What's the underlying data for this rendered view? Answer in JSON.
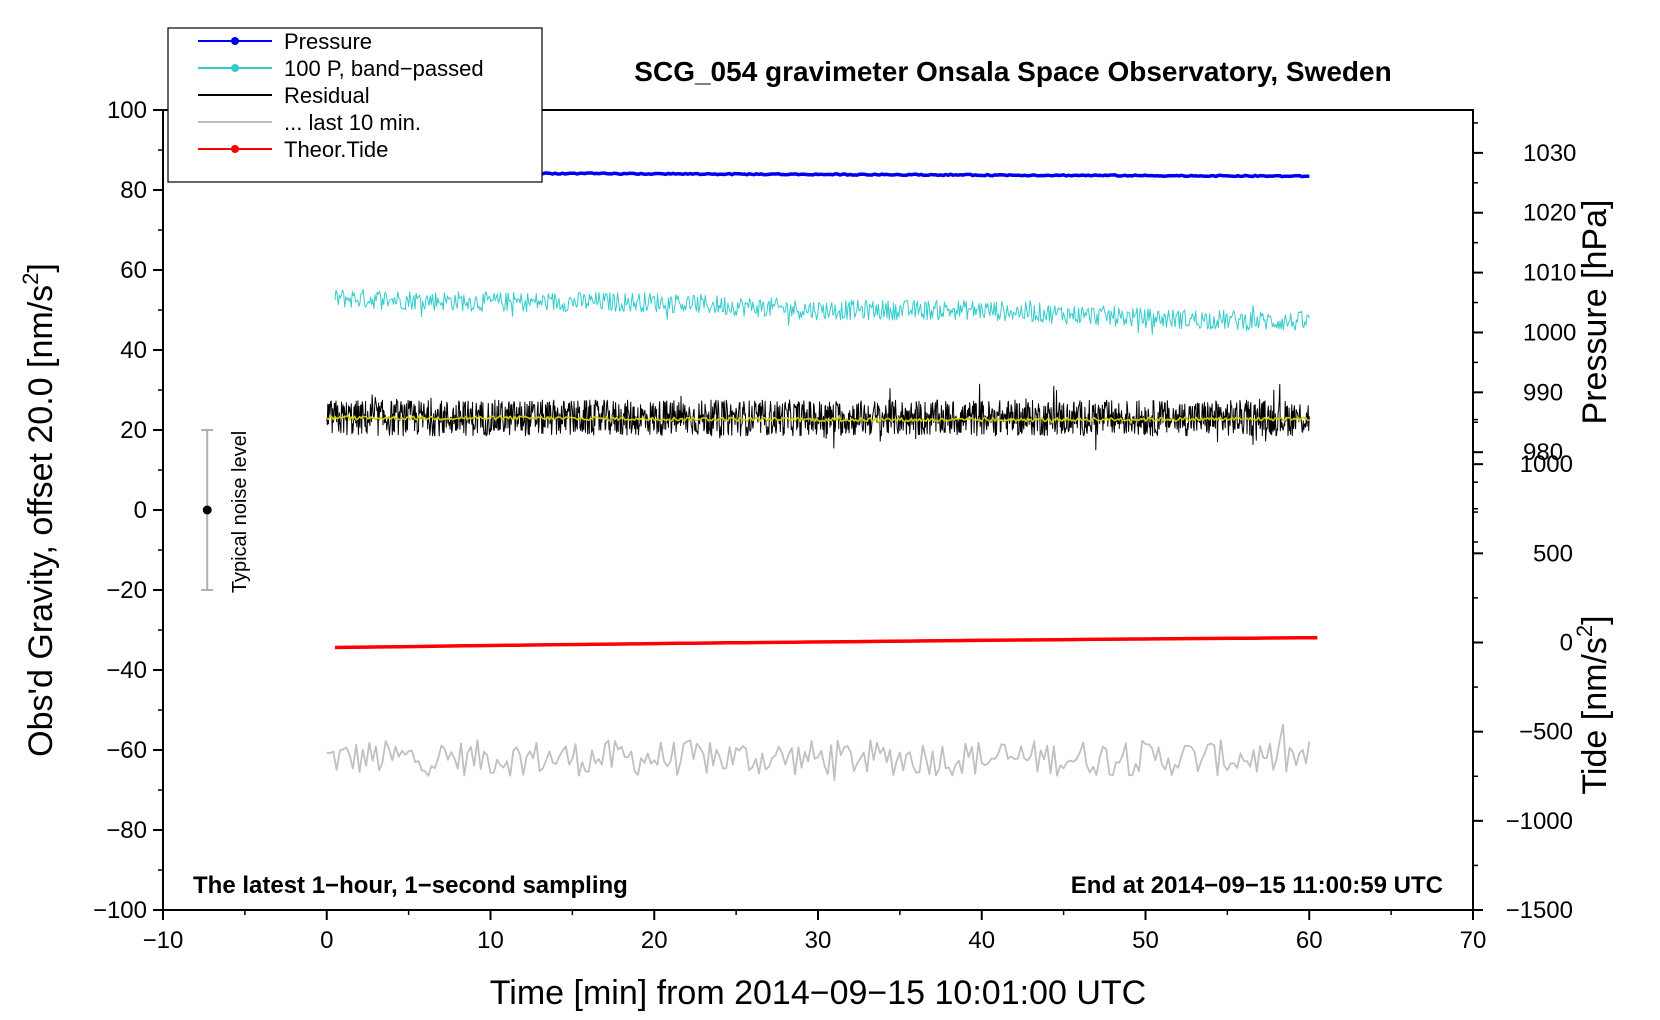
{
  "chart_data": {
    "type": "line",
    "title": "SCG_054 gravimeter Onsala Space Observatory, Sweden",
    "xlabel": "Time [min] from 2014−09−15 10:01:00 UTC",
    "ylabel": "Obs'd Gravity, offset 20.0 [nm/s",
    "ylabel_sup": "2",
    "ylabel_end": "]",
    "y2label_pressure": "Pressure [hPa]",
    "y2label_tide": "Tide [nm/s",
    "y2label_tide_sup": "2",
    "y2label_tide_end": "]",
    "note_left": "The latest 1−hour, 1−second sampling",
    "note_right": "End at 2014−09−15 11:00:59 UTC",
    "noise_label": "Typical noise level",
    "xlim": [
      -10,
      70
    ],
    "ylim": [
      -100,
      100
    ],
    "pressure_lim": [
      965,
      1040
    ],
    "tide_lim": [
      -1500,
      1500
    ],
    "x_ticks": [
      "−10",
      "0",
      "10",
      "20",
      "30",
      "40",
      "50",
      "60",
      "70"
    ],
    "y_ticks": [
      "100",
      "80",
      "60",
      "40",
      "20",
      "0",
      "−20",
      "−40",
      "−60",
      "−80",
      "−100"
    ],
    "pressure_ticks": [
      "1030",
      "1020",
      "1010",
      "1000",
      "990",
      "980"
    ],
    "tide_ticks": [
      "1000",
      "500",
      "0",
      "−500",
      "−1000",
      "−1500"
    ],
    "legend": [
      {
        "label": "Pressure",
        "color": "#0000ee",
        "marker": true
      },
      {
        "label": "100 P, band−passed",
        "color": "#33cccc",
        "marker": true
      },
      {
        "label": "Residual",
        "color": "#000000",
        "marker": false
      },
      {
        "label": "... last 10 min.",
        "color": "#c0c0c0",
        "marker": false
      },
      {
        "label": "Theor.Tide",
        "color": "#ff0000",
        "marker": true
      }
    ],
    "series": [
      {
        "name": "Pressure",
        "axis": "pressure",
        "color": "#0000ee",
        "x": [
          0,
          10,
          20,
          30,
          40,
          50,
          60
        ],
        "values": [
          1026.6,
          1026.6,
          1026.5,
          1026.4,
          1026.3,
          1026.2,
          1026.1
        ],
        "noise": 0.1
      },
      {
        "name": "100 P, band−passed",
        "axis": "gravity",
        "color": "#33cccc",
        "x": [
          0.5,
          10,
          20,
          30,
          40,
          50,
          60
        ],
        "values": [
          53,
          52,
          52,
          50,
          50,
          48,
          47
        ],
        "noise": 2.5
      },
      {
        "name": "Residual",
        "axis": "gravity",
        "color": "#000000",
        "x": [
          0,
          10,
          20,
          30,
          40,
          50,
          60
        ],
        "values": [
          23,
          23,
          23,
          23,
          23,
          23,
          23
        ],
        "noise": 4.5
      },
      {
        "name": "Residual (smoothed)",
        "axis": "gravity",
        "color": "#cccc00",
        "x": [
          0,
          10,
          20,
          30,
          40,
          50,
          60
        ],
        "values": [
          23,
          23,
          22.8,
          22.6,
          22.5,
          22.7,
          22.8
        ],
        "noise": 0.5
      },
      {
        "name": "... last 10 min.",
        "axis": "gravity",
        "color": "#c0c0c0",
        "x": [
          0,
          10,
          20,
          30,
          40,
          50,
          60
        ],
        "values": [
          -62,
          -62,
          -62,
          -62,
          -62,
          -62,
          -62
        ],
        "noise": 4.5
      },
      {
        "name": "Theor.Tide",
        "axis": "tide",
        "color": "#ff0000",
        "x": [
          0.5,
          10,
          20,
          30,
          40,
          50,
          60.5
        ],
        "values": [
          -28,
          -17,
          -6,
          3,
          12,
          20,
          27
        ],
        "noise": 0
      }
    ],
    "noise_bar": {
      "x": -7.3,
      "center": 0,
      "low": -20,
      "high": 20
    }
  }
}
